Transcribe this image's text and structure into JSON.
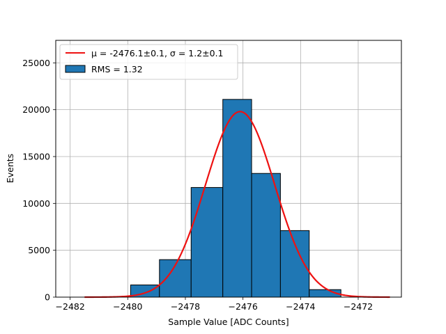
{
  "chart_data": {
    "type": "bar",
    "title": "",
    "xlabel": "Sample Value [ADC Counts]",
    "ylabel": "Events",
    "xlim": [
      -2482.5,
      -2470.5
    ],
    "ylim": [
      0,
      27400
    ],
    "grid": true,
    "legend_placement": "top-left",
    "bins": [
      {
        "left": -2479.9,
        "right": -2478.9,
        "value": 1300
      },
      {
        "left": -2478.9,
        "right": -2477.8,
        "value": 4000
      },
      {
        "left": -2477.8,
        "right": -2476.7,
        "value": 11700
      },
      {
        "left": -2476.7,
        "right": -2475.7,
        "value": 21100
      },
      {
        "left": -2475.7,
        "right": -2474.7,
        "value": 13200
      },
      {
        "left": -2474.7,
        "right": -2473.7,
        "value": 7100
      },
      {
        "left": -2473.7,
        "right": -2472.6,
        "value": 800
      }
    ],
    "fit": {
      "mu": -2476.1,
      "sigma": 1.2,
      "amplitude": 19800,
      "x_range": [
        -2481.5,
        -2470.9
      ]
    },
    "x_ticks": [
      -2482,
      -2480,
      -2478,
      -2476,
      -2474,
      -2472
    ],
    "y_ticks": [
      0,
      5000,
      10000,
      15000,
      20000,
      25000
    ],
    "legend": [
      {
        "label": "μ = -2476.1±0.1, σ = 1.2±0.1",
        "kind": "line",
        "color": "#ee1111"
      },
      {
        "label": "RMS = 1.32",
        "kind": "patch",
        "color": "#1f77b4"
      }
    ],
    "colors": {
      "bar": "#1f77b4",
      "bar_edge": "#000000",
      "fit": "#ee1111",
      "grid": "#b0b0b0"
    }
  }
}
